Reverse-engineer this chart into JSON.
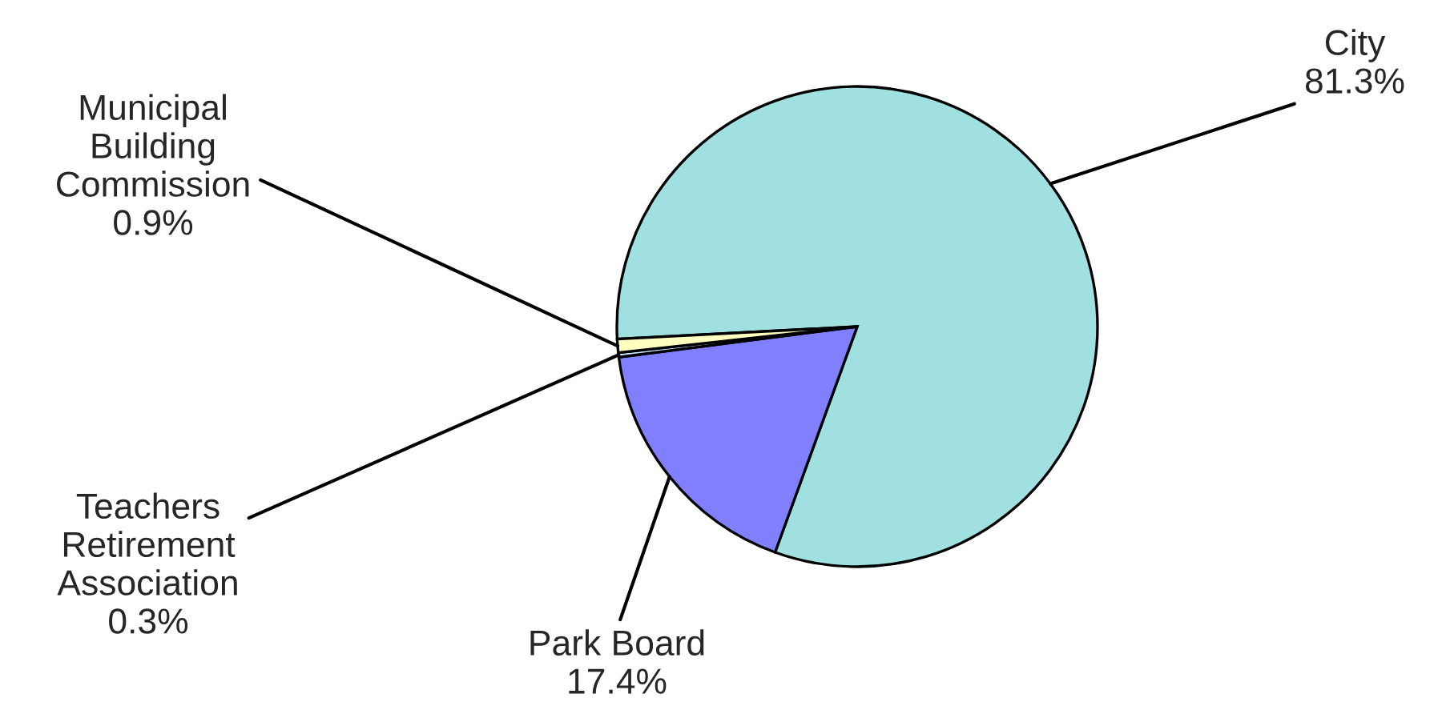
{
  "chart_data": {
    "type": "pie",
    "categories": [
      "City",
      "Park Board",
      "Teachers\nRetirement\nAssociation",
      "Municipal\nBuilding\nCommission"
    ],
    "values": [
      81.3,
      17.4,
      0.3,
      0.9
    ],
    "value_labels": [
      "81.3%",
      "17.4%",
      "0.3%",
      "0.9%"
    ],
    "colors": [
      "#a0e0e0",
      "#8080ff",
      "#c0e8f8",
      "#ffffc0"
    ],
    "legend": false
  }
}
